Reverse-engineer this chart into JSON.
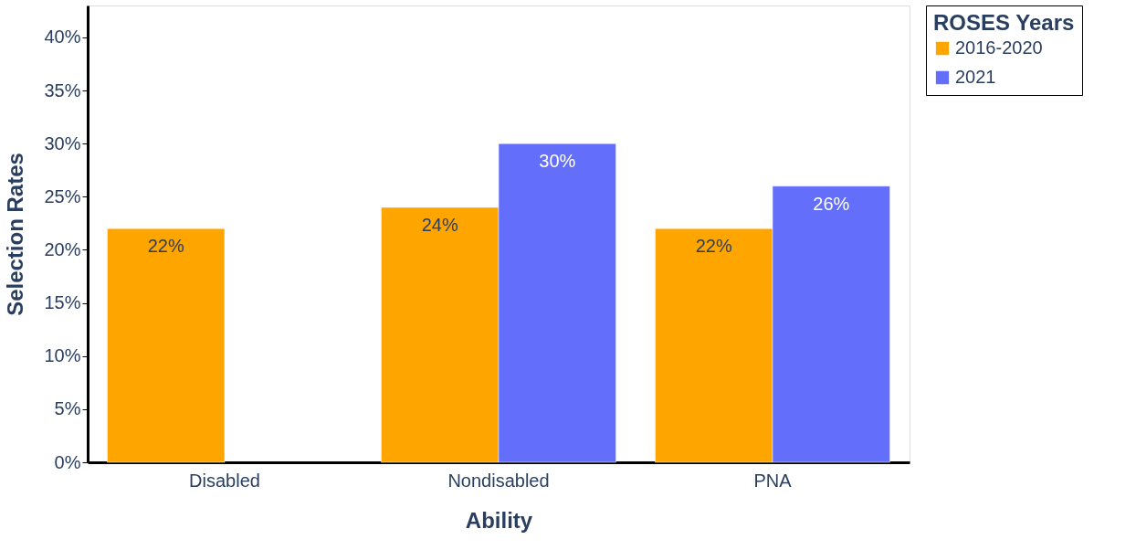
{
  "chart_data": {
    "type": "bar",
    "xlabel": "Ability",
    "ylabel": "Selection Rates",
    "legend_title": "ROSES Years",
    "legend": "top right",
    "grid": false,
    "categories": [
      "Disabled",
      "Nondisabled",
      "PNA"
    ],
    "ylim": [
      0,
      43
    ],
    "yticks": [
      {
        "value": 0,
        "label": "0%"
      },
      {
        "value": 5,
        "label": "5%"
      },
      {
        "value": 10,
        "label": "10%"
      },
      {
        "value": 15,
        "label": "15%"
      },
      {
        "value": 20,
        "label": "20%"
      },
      {
        "value": 25,
        "label": "25%"
      },
      {
        "value": 30,
        "label": "30%"
      },
      {
        "value": 35,
        "label": "35%"
      },
      {
        "value": 40,
        "label": "40%"
      }
    ],
    "series": [
      {
        "name": "2016-2020",
        "color": "#ffa500",
        "values": [
          22,
          24,
          22
        ],
        "value_labels": [
          "22%",
          "24%",
          "22%"
        ]
      },
      {
        "name": "2021",
        "color": "#636efa",
        "values": [
          null,
          30,
          26
        ],
        "value_labels": [
          null,
          "30%",
          "26%"
        ]
      }
    ]
  }
}
